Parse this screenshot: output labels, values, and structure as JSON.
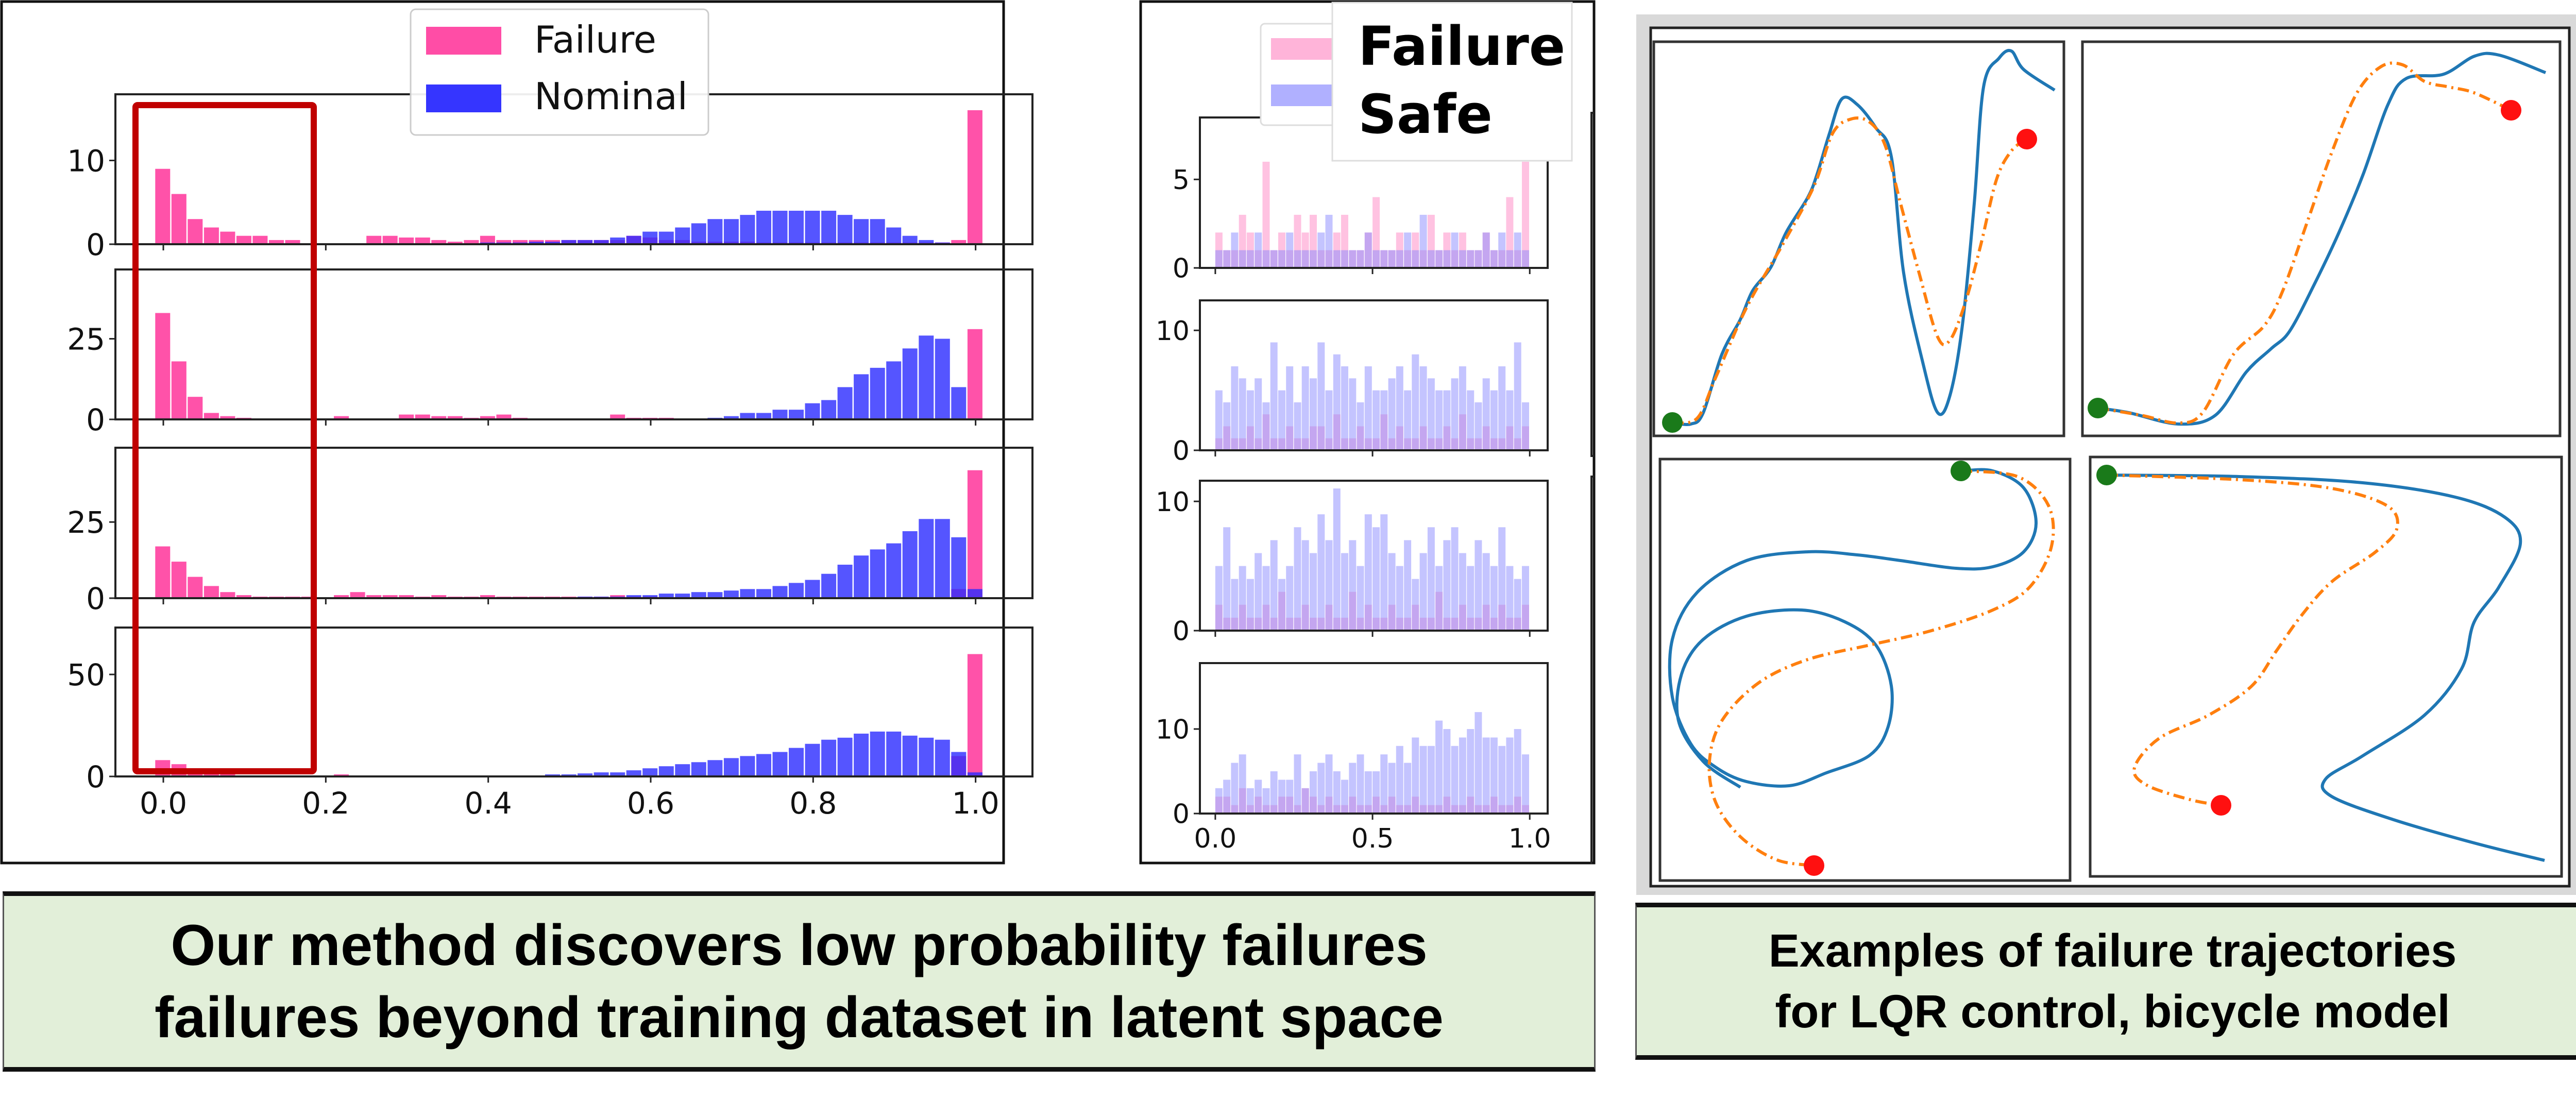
{
  "colors": {
    "failure_left": "#ff3fa0",
    "nominal_left": "#2b2bff",
    "failure_mid": "#ff8fc8",
    "safe_mid": "#8a8aff",
    "highlight_box": "#c00000",
    "trajectory_reference": "#1f77b4",
    "trajectory_failure": "#ff7f0e",
    "start_marker": "#1a7a1a",
    "end_marker": "#ff1010",
    "caption_bg": "#e2efd9"
  },
  "captions": {
    "left_line1": "Our method discovers low probability failures",
    "left_line2": "failures beyond training dataset in latent space",
    "right_line1": "Examples of failure trajectories",
    "right_line2": "for LQR control, bicycle model"
  },
  "chart_data": [
    {
      "type": "bar",
      "title": "",
      "layout": "4 stacked histograms",
      "bin_width": 0.02,
      "x_start": 0.0,
      "xlim": [
        -0.059,
        1.07
      ],
      "xticks": [
        "0.0",
        "0.2",
        "0.4",
        "0.6",
        "0.8",
        "1.0"
      ],
      "xtick_values": [
        0.0,
        0.2,
        0.4,
        0.6,
        0.8,
        1.0
      ],
      "legend": {
        "placement": "top-center",
        "entries": [
          "Failure",
          "Nominal"
        ]
      },
      "annotation": "red rectangle highlighting x in [-0.04, 0.18]",
      "subplots": [
        {
          "ylim": [
            0,
            17.9
          ],
          "yticks": [
            "0",
            "10"
          ],
          "ytick_values": [
            0,
            10
          ],
          "series": [
            {
              "name": "Failure",
              "values": [
                9,
                6,
                3,
                2,
                1.5,
                1,
                1,
                0.5,
                0.5,
                0,
                0,
                0,
                0,
                1,
                1,
                0.8,
                0.8,
                0.5,
                0.3,
                0.5,
                1,
                0.5,
                0.5,
                0.5,
                0.5,
                0.5,
                0.5,
                0.5,
                0.5,
                1,
                0.8,
                0.5,
                0.5,
                0.3,
                0.3,
                0.3,
                0.3,
                0.2,
                0.2,
                0.2,
                0.2,
                0.2,
                0.2,
                0.2,
                0.2,
                0.2,
                0.2,
                0.2,
                0.2,
                0.5,
                16
              ]
            },
            {
              "name": "Nominal",
              "values": [
                0,
                0,
                0,
                0,
                0,
                0,
                0,
                0,
                0,
                0,
                0,
                0,
                0,
                0,
                0,
                0,
                0,
                0,
                0,
                0,
                0.2,
                0.2,
                0.2,
                0.3,
                0.3,
                0.5,
                0.5,
                0.5,
                0.8,
                1,
                1.5,
                1.5,
                2,
                2.5,
                3,
                3,
                3.5,
                4,
                4,
                4,
                4,
                4,
                3.5,
                3,
                3,
                2,
                1,
                0.5,
                0.2,
                0,
                0
              ]
            }
          ]
        },
        {
          "ylim": [
            0,
            46.5
          ],
          "yticks": [
            "0",
            "25"
          ],
          "ytick_values": [
            0,
            25
          ],
          "series": [
            {
              "name": "Failure",
              "values": [
                33,
                18,
                7,
                2,
                1,
                0.5,
                0.3,
                0.3,
                0.3,
                0.2,
                0.2,
                1,
                0,
                0,
                0,
                1.5,
                1.5,
                1,
                1,
                0.5,
                1,
                1.5,
                0.5,
                0,
                0,
                0,
                0,
                0,
                1.5,
                0.5,
                0.5,
                0.5,
                0.3,
                0.2,
                0,
                0,
                0,
                0,
                0,
                0,
                0,
                0,
                0,
                0,
                0,
                0,
                0,
                0,
                0,
                0,
                28
              ]
            },
            {
              "name": "Nominal",
              "values": [
                0,
                0,
                0,
                0,
                0,
                0,
                0,
                0,
                0,
                0,
                0,
                0,
                0,
                0,
                0,
                0,
                0,
                0,
                0,
                0,
                0,
                0,
                0,
                0,
                0,
                0,
                0,
                0,
                0,
                0,
                0,
                0,
                0,
                0,
                0.5,
                1,
                2,
                2,
                3,
                3,
                5,
                6,
                10,
                14,
                16,
                18,
                22,
                26,
                25,
                10,
                0
              ]
            }
          ]
        },
        {
          "ylim": [
            0,
            49.4
          ],
          "yticks": [
            "0",
            "25"
          ],
          "ytick_values": [
            0,
            25
          ],
          "series": [
            {
              "name": "Failure",
              "values": [
                17,
                12,
                7,
                4,
                2,
                1,
                0.5,
                0.5,
                0.5,
                0.5,
                0.3,
                1,
                2,
                1,
                1,
                1,
                0.5,
                1,
                0.5,
                0.5,
                1,
                0.5,
                0.5,
                0.5,
                0.5,
                0.5,
                0.5,
                0.5,
                1,
                0.5,
                0.5,
                0.3,
                0.3,
                0.3,
                0.3,
                0.3,
                0.2,
                0.2,
                0.2,
                0,
                0,
                0,
                0,
                0,
                0,
                0,
                0,
                0,
                0,
                3,
                42
              ]
            },
            {
              "name": "Nominal",
              "values": [
                0,
                0,
                0,
                0,
                0,
                0,
                0,
                0,
                0,
                0,
                0,
                0,
                0,
                0,
                0,
                0,
                0,
                0,
                0,
                0,
                0,
                0,
                0,
                0,
                0,
                0.3,
                0.5,
                0.5,
                0.5,
                1,
                1,
                1.5,
                1.5,
                2,
                2,
                2.5,
                3,
                3,
                4,
                5,
                6,
                8,
                11,
                14,
                16,
                18,
                22,
                26,
                26,
                20,
                3
              ]
            }
          ]
        },
        {
          "ylim": [
            0,
            73
          ],
          "yticks": [
            "0",
            "50"
          ],
          "ytick_values": [
            0,
            50
          ],
          "series": [
            {
              "name": "Failure",
              "values": [
                8,
                6,
                3,
                1.5,
                1,
                0.5,
                0.3,
                0,
                0,
                0,
                0,
                1,
                0.5,
                0,
                0,
                0,
                0,
                0,
                0,
                0,
                0,
                0,
                0,
                0,
                0,
                0.5,
                0,
                0,
                0,
                0,
                0,
                0,
                0,
                0,
                0,
                0,
                0,
                0,
                0,
                0,
                0,
                0,
                0,
                0,
                0,
                0,
                0,
                0,
                0,
                10,
                60
              ]
            },
            {
              "name": "Nominal",
              "values": [
                0,
                0,
                0,
                0,
                0,
                0,
                0,
                0,
                0,
                0,
                0,
                0,
                0,
                0,
                0,
                0,
                0,
                0,
                0,
                0,
                0,
                0.3,
                0.5,
                0.5,
                1,
                1,
                1.5,
                2,
                2,
                3,
                4,
                5,
                6,
                7,
                8,
                9,
                10,
                11,
                12,
                14,
                16,
                18,
                19,
                21,
                22,
                22,
                20,
                19,
                18,
                12,
                2
              ]
            }
          ]
        }
      ]
    },
    {
      "type": "bar",
      "title": "",
      "layout": "4 stacked histograms",
      "bin_width": 0.025,
      "x_start": 0.0,
      "xlim": [
        -0.049,
        1.057
      ],
      "xticks": [
        "0.0",
        "0.5",
        "1.0"
      ],
      "xtick_values": [
        0.0,
        0.5,
        1.0
      ],
      "legend": {
        "placement": "top-right",
        "entries": [
          "Failure",
          "Safe"
        ]
      },
      "subplots": [
        {
          "ylim": [
            0,
            8.5
          ],
          "yticks": [
            "0",
            "5"
          ],
          "ytick_values": [
            0,
            5
          ],
          "series": [
            {
              "name": "Failure",
              "values": [
                2,
                1,
                1,
                3,
                2,
                1,
                6,
                1,
                2,
                1,
                3,
                2,
                3,
                1,
                1,
                2,
                3,
                1,
                1,
                2,
                4,
                1,
                1,
                2,
                1,
                2,
                1,
                3,
                1,
                2,
                1,
                2,
                1,
                1,
                2,
                1,
                1,
                4,
                1,
                6
              ]
            },
            {
              "name": "Safe",
              "values": [
                1,
                1,
                2,
                1,
                1,
                2,
                1,
                1,
                1,
                2,
                1,
                1,
                1,
                2,
                3,
                1,
                1,
                1,
                1,
                2,
                1,
                1,
                1,
                1,
                2,
                1,
                3,
                1,
                1,
                1,
                2,
                1,
                1,
                1,
                2,
                1,
                2,
                1,
                2,
                1
              ]
            }
          ]
        },
        {
          "ylim": [
            0,
            12.5
          ],
          "yticks": [
            "0",
            "10"
          ],
          "ytick_values": [
            0,
            10
          ],
          "series": [
            {
              "name": "Failure",
              "values": [
                1,
                2,
                1,
                1,
                2,
                1,
                3,
                1,
                1,
                2,
                1,
                1,
                2,
                2,
                1,
                3,
                1,
                1,
                2,
                1,
                1,
                3,
                1,
                2,
                1,
                1,
                2,
                1,
                1,
                2,
                1,
                3,
                1,
                1,
                2,
                1,
                1,
                2,
                1,
                2
              ]
            },
            {
              "name": "Safe",
              "values": [
                5,
                4,
                7,
                6,
                5,
                6,
                4,
                9,
                5,
                7,
                4,
                7,
                6,
                9,
                5,
                8,
                7,
                6,
                4,
                7,
                5,
                5,
                6,
                7,
                5,
                8,
                7,
                6,
                5,
                5,
                6,
                7,
                5,
                4,
                6,
                5,
                7,
                5,
                9,
                4
              ]
            }
          ]
        },
        {
          "ylim": [
            0,
            11.6
          ],
          "yticks": [
            "0",
            "10"
          ],
          "ytick_values": [
            0,
            10
          ],
          "series": [
            {
              "name": "Failure",
              "values": [
                2,
                1,
                1,
                2,
                1,
                1,
                2,
                1,
                3,
                1,
                1,
                2,
                1,
                1,
                2,
                1,
                1,
                3,
                1,
                2,
                1,
                1,
                2,
                1,
                1,
                2,
                1,
                1,
                3,
                1,
                1,
                2,
                1,
                1,
                2,
                1,
                2,
                1,
                1,
                2
              ]
            },
            {
              "name": "Safe",
              "values": [
                5,
                8,
                4,
                5,
                4,
                6,
                5,
                7,
                4,
                5,
                8,
                7,
                6,
                9,
                7,
                11,
                6,
                7,
                5,
                9,
                8,
                9,
                6,
                5,
                7,
                4,
                6,
                8,
                5,
                7,
                8,
                6,
                5,
                7,
                6,
                5,
                8,
                5,
                4,
                5
              ]
            }
          ]
        },
        {
          "ylim": [
            0,
            17.8
          ],
          "yticks": [
            "0",
            "10"
          ],
          "ytick_values": [
            0,
            10
          ],
          "series": [
            {
              "name": "Failure",
              "values": [
                2,
                2,
                1,
                3,
                1,
                2,
                1,
                1,
                2,
                2,
                1,
                3,
                2,
                1,
                2,
                1,
                1,
                2,
                1,
                1,
                2,
                1,
                2,
                1,
                1,
                2,
                1,
                1,
                1,
                2,
                1,
                1,
                2,
                1,
                1,
                2,
                1,
                1,
                2,
                1
              ]
            },
            {
              "name": "Safe",
              "values": [
                3,
                4,
                6,
                7,
                3,
                4,
                3,
                5,
                4,
                4,
                7,
                3,
                5,
                6,
                7,
                5,
                4,
                6,
                7,
                5,
                5,
                7,
                6,
                8,
                6,
                9,
                8,
                8,
                11,
                10,
                8,
                9,
                10,
                12,
                9,
                9,
                8,
                9,
                10,
                7
              ]
            }
          ]
        }
      ]
    },
    {
      "type": "line",
      "title": "",
      "layout": "2x2 grid of trajectory plots",
      "series": [
        "reference trajectory (solid blue)",
        "failure trajectory (orange dash-dot)"
      ],
      "markers": [
        "start (green)",
        "end (red)"
      ]
    }
  ]
}
